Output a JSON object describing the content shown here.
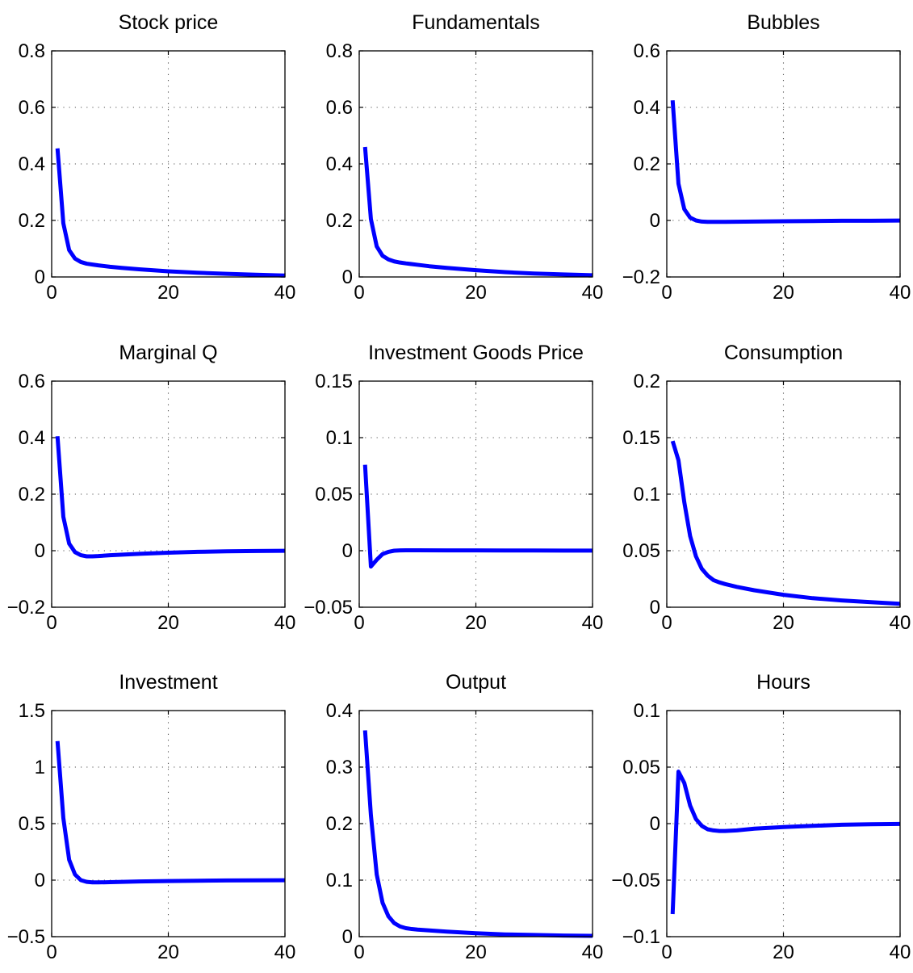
{
  "colors": {
    "series": "#0000ff",
    "axes": "#000000",
    "grid": "#555555"
  },
  "chart_data": [
    {
      "type": "line",
      "title": "Stock price",
      "xlim": [
        0,
        40
      ],
      "ylim": [
        0,
        0.8
      ],
      "xticks": [
        0,
        20,
        40
      ],
      "yticks": [
        0,
        0.2,
        0.4,
        0.6,
        0.8
      ],
      "xtick_labels": [
        "0",
        "20",
        "40"
      ],
      "ytick_labels": [
        "0",
        "0.2",
        "0.4",
        "0.6",
        "0.8"
      ],
      "grid": true,
      "series": [
        {
          "x": [
            1,
            2,
            3,
            4,
            5,
            6,
            7,
            8,
            10,
            12,
            15,
            20,
            25,
            30,
            35,
            40
          ],
          "y": [
            0.455,
            0.19,
            0.095,
            0.065,
            0.053,
            0.047,
            0.044,
            0.041,
            0.036,
            0.032,
            0.027,
            0.02,
            0.015,
            0.011,
            0.008,
            0.005
          ]
        }
      ]
    },
    {
      "type": "line",
      "title": "Fundamentals",
      "xlim": [
        0,
        40
      ],
      "ylim": [
        0,
        0.8
      ],
      "xticks": [
        0,
        20,
        40
      ],
      "yticks": [
        0,
        0.2,
        0.4,
        0.6,
        0.8
      ],
      "xtick_labels": [
        "0",
        "20",
        "40"
      ],
      "ytick_labels": [
        "0",
        "0.2",
        "0.4",
        "0.6",
        "0.8"
      ],
      "grid": true,
      "series": [
        {
          "x": [
            1,
            2,
            3,
            4,
            5,
            6,
            7,
            8,
            10,
            12,
            15,
            20,
            25,
            30,
            35,
            40
          ],
          "y": [
            0.46,
            0.205,
            0.108,
            0.075,
            0.062,
            0.055,
            0.051,
            0.048,
            0.043,
            0.038,
            0.032,
            0.024,
            0.017,
            0.012,
            0.009,
            0.006
          ]
        }
      ]
    },
    {
      "type": "line",
      "title": "Bubbles",
      "xlim": [
        0,
        40
      ],
      "ylim": [
        -0.2,
        0.6
      ],
      "xticks": [
        0,
        20,
        40
      ],
      "yticks": [
        -0.2,
        0,
        0.2,
        0.4,
        0.6
      ],
      "xtick_labels": [
        "0",
        "20",
        "40"
      ],
      "ytick_labels": [
        "−0.2",
        "0",
        "0.2",
        "0.4",
        "0.6"
      ],
      "grid": true,
      "series": [
        {
          "x": [
            1,
            2,
            3,
            4,
            5,
            6,
            7,
            8,
            10,
            15,
            20,
            25,
            30,
            35,
            40
          ],
          "y": [
            0.425,
            0.13,
            0.04,
            0.01,
            0.0,
            -0.004,
            -0.005,
            -0.005,
            -0.005,
            -0.004,
            -0.003,
            -0.002,
            -0.001,
            -0.001,
            -0.0005
          ]
        }
      ]
    },
    {
      "type": "line",
      "title": "Marginal Q",
      "xlim": [
        0,
        40
      ],
      "ylim": [
        -0.2,
        0.6
      ],
      "xticks": [
        0,
        20,
        40
      ],
      "yticks": [
        -0.2,
        0,
        0.2,
        0.4,
        0.6
      ],
      "xtick_labels": [
        "0",
        "20",
        "40"
      ],
      "ytick_labels": [
        "−0.2",
        "0",
        "0.2",
        "0.4",
        "0.6"
      ],
      "grid": true,
      "series": [
        {
          "x": [
            1,
            2,
            3,
            4,
            5,
            6,
            7,
            8,
            10,
            15,
            20,
            25,
            30,
            35,
            40
          ],
          "y": [
            0.405,
            0.12,
            0.025,
            -0.005,
            -0.016,
            -0.02,
            -0.02,
            -0.019,
            -0.016,
            -0.011,
            -0.007,
            -0.004,
            -0.002,
            -0.001,
            -0.0005
          ]
        }
      ]
    },
    {
      "type": "line",
      "title": "Investment Goods Price",
      "xlim": [
        0,
        40
      ],
      "ylim": [
        -0.05,
        0.15
      ],
      "xticks": [
        0,
        20,
        40
      ],
      "yticks": [
        -0.05,
        0,
        0.05,
        0.1,
        0.15
      ],
      "xtick_labels": [
        "0",
        "20",
        "40"
      ],
      "ytick_labels": [
        "−0.05",
        "0",
        "0.05",
        "0.1",
        "0.15"
      ],
      "grid": true,
      "series": [
        {
          "x": [
            1,
            2,
            3,
            4,
            5,
            6,
            7,
            8,
            10,
            15,
            20,
            25,
            30,
            35,
            40
          ],
          "y": [
            0.076,
            -0.014,
            -0.008,
            -0.003,
            -0.001,
            0.0,
            0.0003,
            0.0004,
            0.0004,
            0.0003,
            0.0003,
            0.0002,
            0.0002,
            0.0001,
            0.0001
          ]
        }
      ]
    },
    {
      "type": "line",
      "title": "Consumption",
      "xlim": [
        0,
        40
      ],
      "ylim": [
        0,
        0.2
      ],
      "xticks": [
        0,
        20,
        40
      ],
      "yticks": [
        0,
        0.05,
        0.1,
        0.15,
        0.2
      ],
      "xtick_labels": [
        "0",
        "20",
        "40"
      ],
      "ytick_labels": [
        "0",
        "0.05",
        "0.1",
        "0.15",
        "0.2"
      ],
      "grid": true,
      "series": [
        {
          "x": [
            1,
            2,
            3,
            4,
            5,
            6,
            7,
            8,
            9,
            10,
            12,
            15,
            20,
            25,
            30,
            35,
            40
          ],
          "y": [
            0.147,
            0.13,
            0.093,
            0.063,
            0.045,
            0.034,
            0.028,
            0.024,
            0.022,
            0.0205,
            0.018,
            0.015,
            0.011,
            0.008,
            0.006,
            0.0045,
            0.003
          ]
        }
      ]
    },
    {
      "type": "line",
      "title": "Investment",
      "xlim": [
        0,
        40
      ],
      "ylim": [
        -0.5,
        1.5
      ],
      "xticks": [
        0,
        20,
        40
      ],
      "yticks": [
        -0.5,
        0,
        0.5,
        1,
        1.5
      ],
      "xtick_labels": [
        "0",
        "20",
        "40"
      ],
      "ytick_labels": [
        "−0.5",
        "0",
        "0.5",
        "1",
        "1.5"
      ],
      "grid": true,
      "series": [
        {
          "x": [
            1,
            2,
            3,
            4,
            5,
            6,
            7,
            8,
            10,
            15,
            20,
            25,
            30,
            35,
            40
          ],
          "y": [
            1.23,
            0.55,
            0.18,
            0.05,
            0.0,
            -0.015,
            -0.02,
            -0.02,
            -0.018,
            -0.012,
            -0.008,
            -0.005,
            -0.003,
            -0.002,
            -0.001
          ]
        }
      ]
    },
    {
      "type": "line",
      "title": "Output",
      "xlim": [
        0,
        40
      ],
      "ylim": [
        0,
        0.4
      ],
      "xticks": [
        0,
        20,
        40
      ],
      "yticks": [
        0,
        0.1,
        0.2,
        0.3,
        0.4
      ],
      "xtick_labels": [
        "0",
        "20",
        "40"
      ],
      "ytick_labels": [
        "0",
        "0.1",
        "0.2",
        "0.3",
        "0.4"
      ],
      "grid": true,
      "series": [
        {
          "x": [
            1,
            2,
            3,
            4,
            5,
            6,
            7,
            8,
            9,
            10,
            12,
            15,
            20,
            25,
            30,
            35,
            40
          ],
          "y": [
            0.365,
            0.215,
            0.11,
            0.06,
            0.036,
            0.024,
            0.018,
            0.015,
            0.0135,
            0.0125,
            0.011,
            0.009,
            0.006,
            0.004,
            0.003,
            0.002,
            0.0015
          ]
        }
      ]
    },
    {
      "type": "line",
      "title": "Hours",
      "xlim": [
        0,
        40
      ],
      "ylim": [
        -0.1,
        0.1
      ],
      "xticks": [
        0,
        20,
        40
      ],
      "yticks": [
        -0.1,
        -0.05,
        0,
        0.05,
        0.1
      ],
      "xtick_labels": [
        "0",
        "20",
        "40"
      ],
      "ytick_labels": [
        "−0.1",
        "−0.05",
        "0",
        "0.05",
        "0.1"
      ],
      "grid": true,
      "series": [
        {
          "x": [
            1,
            2,
            3,
            4,
            5,
            6,
            7,
            8,
            9,
            10,
            12,
            15,
            20,
            25,
            30,
            35,
            40
          ],
          "y": [
            -0.08,
            0.046,
            0.036,
            0.016,
            0.004,
            -0.002,
            -0.005,
            -0.006,
            -0.0065,
            -0.0065,
            -0.006,
            -0.0045,
            -0.003,
            -0.002,
            -0.001,
            -0.0005,
            -0.0003
          ]
        }
      ]
    }
  ]
}
